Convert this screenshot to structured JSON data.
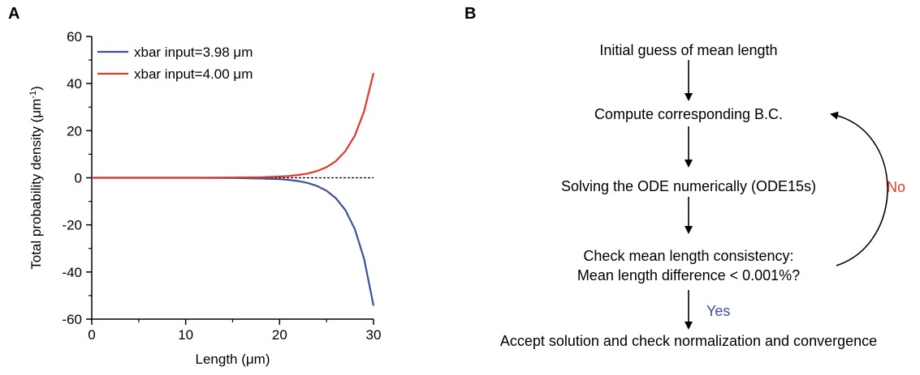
{
  "panels": {
    "a": "A",
    "b": "B"
  },
  "chart_data": {
    "type": "line",
    "xlabel": "Length (μm)",
    "ylabel": "Total probability density (μm",
    "ylabel_sup": "-1",
    "ylabel_close": ")",
    "xlim": [
      0,
      30
    ],
    "ylim": [
      -60,
      60
    ],
    "x_ticks": [
      "0",
      "10",
      "20",
      "30"
    ],
    "y_ticks": [
      "60",
      "40",
      "20",
      "0",
      "-20",
      "-40",
      "-60"
    ],
    "legend_position": "top-left",
    "reference_line": {
      "y": 0,
      "style": "dashed"
    },
    "x": [
      0,
      10,
      15,
      18,
      20,
      21,
      22,
      23,
      24,
      25,
      26,
      27,
      28,
      29,
      30
    ],
    "series": [
      {
        "name": "xbar input=3.98 μm",
        "color": "#3e4f9e",
        "values": [
          0,
          0,
          -0.1,
          -0.3,
          -0.6,
          -0.9,
          -1.4,
          -2.2,
          -3.5,
          -5.5,
          -8.7,
          -13.7,
          -21.7,
          -34.4,
          -54.3
        ]
      },
      {
        "name": "xbar input=4.00 μm",
        "color": "#e0392b",
        "values": [
          0,
          0,
          0.1,
          0.25,
          0.5,
          0.75,
          1.2,
          1.8,
          2.9,
          4.5,
          7.1,
          11.3,
          17.8,
          28.2,
          44.5
        ]
      }
    ]
  },
  "flowchart": {
    "step1": "Initial guess of mean length",
    "step2": "Compute corresponding B.C.",
    "step3": "Solving the ODE numerically (ODE15s)",
    "step4_line1": "Check mean length consistency:",
    "step4_line2": "Mean length difference < 0.001%?",
    "step5": "Accept solution and check normalization and convergence",
    "no_label": "No",
    "yes_label": "Yes",
    "no_color": "#e0392b",
    "yes_color": "#3e4f9e"
  }
}
